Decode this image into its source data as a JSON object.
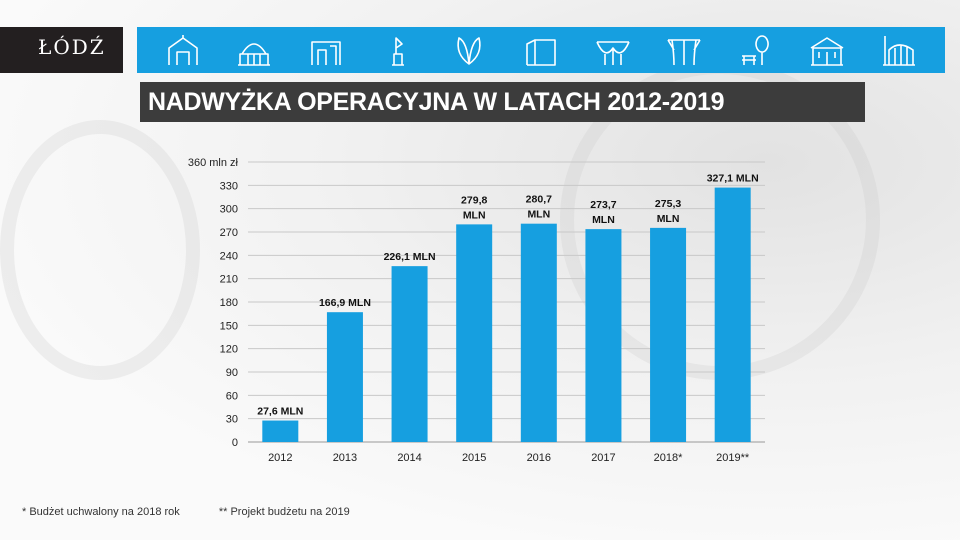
{
  "logo": {
    "text": "ŁÓDŹ"
  },
  "banner": {
    "icons": [
      "gate-icon",
      "railway-station-icon",
      "building-facade-icon",
      "monument-icon",
      "leaf-sculpture-icon",
      "modern-building-icon",
      "arcade-icon",
      "canopy-icon",
      "park-bench-icon",
      "palace-icon",
      "factory-icon"
    ]
  },
  "title": "NADWYŻKA OPERACYJNA W LATACH 2012-2019",
  "chart_data": {
    "type": "bar",
    "title": "NADWYŻKA OPERACYJNA W LATACH 2012-2019",
    "categories": [
      "2012",
      "2013",
      "2014",
      "2015",
      "2016",
      "2017",
      "2018*",
      "2019**"
    ],
    "values": [
      27.6,
      166.9,
      226.1,
      279.8,
      280.7,
      273.7,
      275.3,
      327.1
    ],
    "data_labels": [
      [
        "27,6 MLN"
      ],
      [
        "166,9 MLN"
      ],
      [
        "226,1 MLN"
      ],
      [
        "279,8",
        "MLN"
      ],
      [
        "280,7",
        "MLN"
      ],
      [
        "273,7",
        "MLN"
      ],
      [
        "275,3",
        "MLN"
      ],
      [
        "327,1 MLN"
      ]
    ],
    "yticks": [
      "0",
      "30",
      "60",
      "90",
      "120",
      "150",
      "180",
      "210",
      "240",
      "270",
      "300",
      "330",
      "360 mln zł"
    ],
    "ylim": [
      0,
      360
    ],
    "ylabel": "mln zł",
    "xlabel": "",
    "grid": true,
    "bar_color": "#169fe0"
  },
  "footnotes": [
    "* Budżet uchwalony na 2018 rok",
    "** Projekt budżetu na 2019"
  ]
}
